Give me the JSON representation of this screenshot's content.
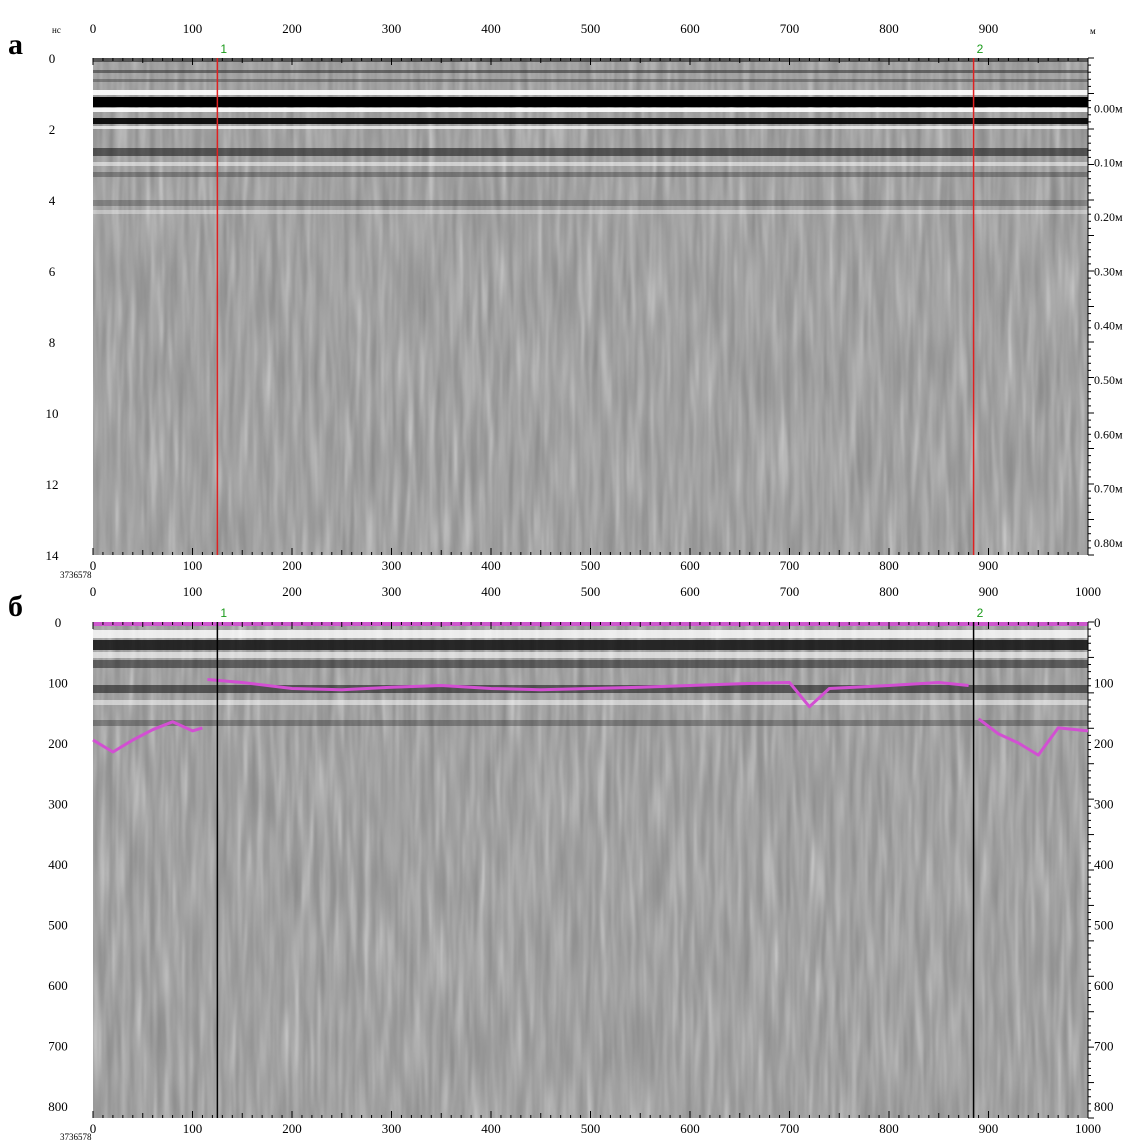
{
  "chart_data": [
    {
      "panel_label": "а",
      "type": "heatmap",
      "description_free": true,
      "x_axis": {
        "unit_label": "м",
        "ticks": [
          "0",
          "100",
          "200",
          "300",
          "400",
          "500",
          "600",
          "700",
          "800",
          "900"
        ],
        "range": [
          0,
          1000
        ]
      },
      "y_axis_left": {
        "unit_label": "нс",
        "ticks": [
          "0",
          "2",
          "4",
          "6",
          "8",
          "10",
          "12",
          "14"
        ],
        "range": [
          0,
          14
        ]
      },
      "y_axis_right": {
        "ticks": [
          "0.00м",
          "0.10м",
          "0.20м",
          "0.30м",
          "0.40м",
          "0.50м",
          "0.60м",
          "0.70м",
          "0.80м"
        ]
      },
      "markers": [
        {
          "label": "1",
          "x": 125
        },
        {
          "label": "2",
          "x": 885
        }
      ],
      "marker_color": "#e02020",
      "bottom_axis": {
        "ticks": [
          "0",
          "100",
          "200",
          "300",
          "400",
          "500",
          "600",
          "700",
          "800",
          "900"
        ]
      },
      "corner_label": "3736578"
    },
    {
      "panel_label": "б",
      "type": "heatmap",
      "x_axis": {
        "ticks": [
          "0",
          "100",
          "200",
          "300",
          "400",
          "500",
          "600",
          "700",
          "800",
          "900",
          "1000"
        ],
        "range": [
          0,
          1000
        ]
      },
      "y_axis_left": {
        "ticks": [
          "0",
          "100",
          "200",
          "300",
          "400",
          "500",
          "600",
          "700",
          "800"
        ],
        "range": [
          0,
          820
        ]
      },
      "y_axis_right": {
        "ticks": [
          "0",
          "100",
          "200",
          "300",
          "400",
          "500",
          "600",
          "700",
          "800"
        ]
      },
      "markers": [
        {
          "label": "1",
          "x": 125
        },
        {
          "label": "2",
          "x": 885
        }
      ],
      "marker_color": "#000000",
      "bottom_axis": {
        "ticks": [
          "0",
          "100",
          "200",
          "300",
          "400",
          "500",
          "600",
          "700",
          "800",
          "900",
          "1000"
        ]
      },
      "corner_label": "3736578",
      "picked_horizon": {
        "color": "#d24fd2",
        "segments": [
          {
            "x": [
              0,
              20,
              40,
              60,
              80,
              100,
              110
            ],
            "y": [
              195,
              215,
              195,
              178,
              165,
              180,
              175
            ]
          },
          {
            "x": [
              115,
              150,
              200,
              250,
              300,
              350,
              400,
              450,
              500,
              550,
              600,
              650,
              700,
              720,
              740,
              800,
              850,
              880
            ],
            "y": [
              95,
              100,
              110,
              112,
              108,
              105,
              110,
              112,
              110,
              108,
              105,
              102,
              100,
              140,
              110,
              105,
              100,
              105
            ]
          },
          {
            "x": [
              890,
              910,
              930,
              950,
              970,
              1000
            ],
            "y": [
              160,
              185,
              200,
              220,
              175,
              180
            ]
          }
        ]
      }
    }
  ],
  "colors": {
    "marker_number": "#1a9a1a",
    "background": "#ffffff"
  }
}
